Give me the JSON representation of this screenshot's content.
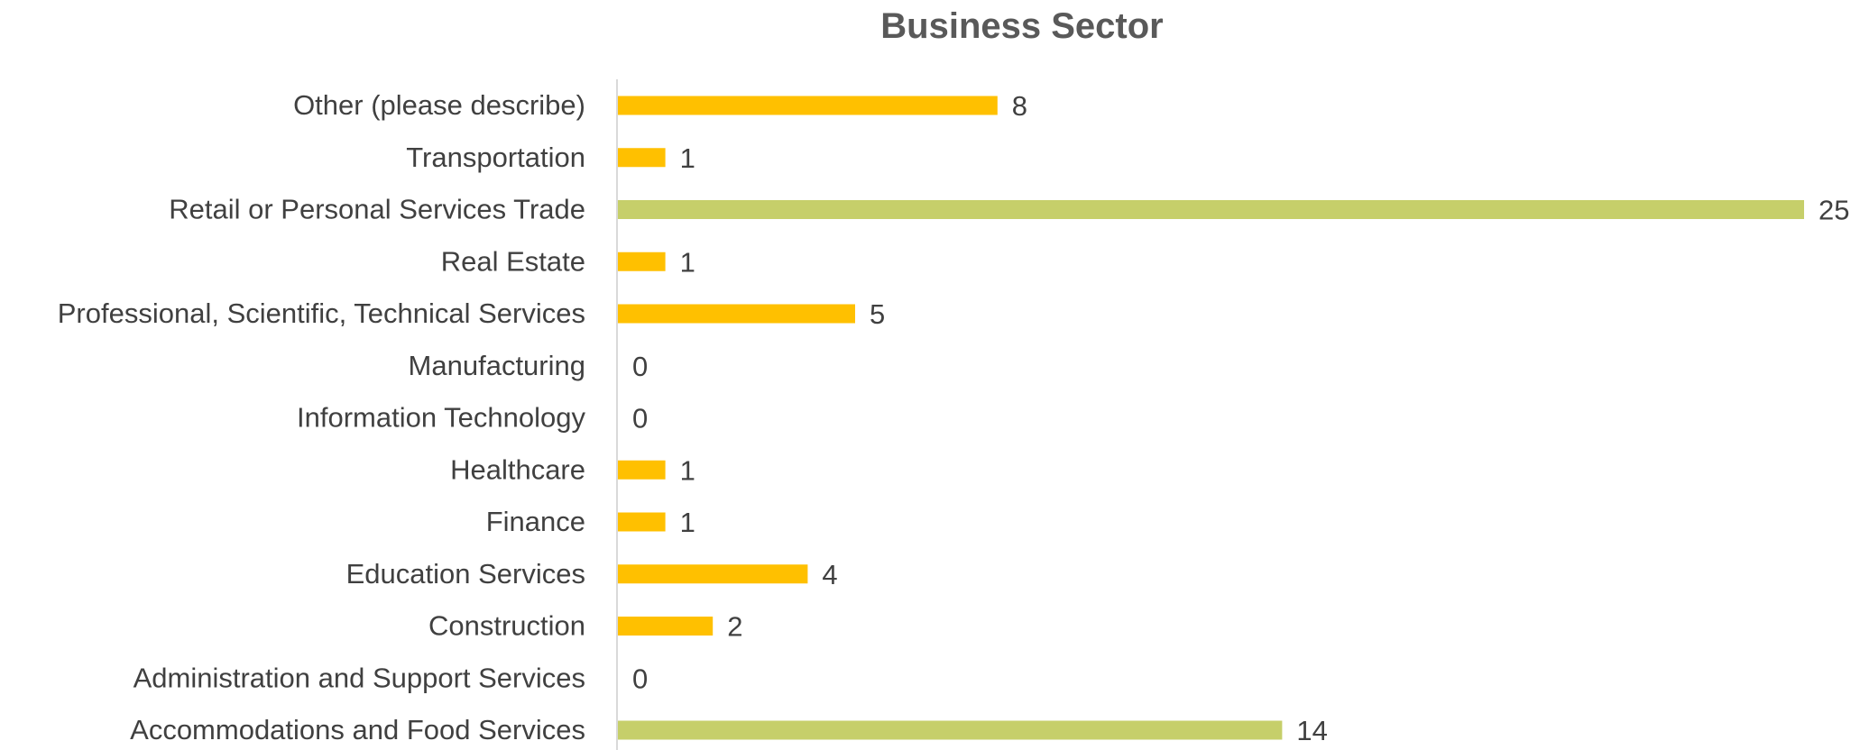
{
  "chart_data": {
    "type": "bar",
    "orientation": "horizontal",
    "title": "Business Sector",
    "xlabel": "",
    "ylabel": "",
    "categories": [
      "Accommodations and Food Services",
      "Administration and Support Services",
      "Construction",
      "Education Services",
      "Finance",
      "Healthcare",
      "Information Technology",
      "Manufacturing",
      "Professional, Scientific, Technical Services",
      "Real Estate",
      "Retail or Personal Services Trade",
      "Transportation",
      "Other (please describe)"
    ],
    "values": [
      14,
      0,
      2,
      4,
      1,
      1,
      0,
      0,
      5,
      1,
      25,
      1,
      8
    ],
    "xlim": [
      0,
      25
    ],
    "grid": false,
    "legend": "none",
    "data_labels": true,
    "colors": {
      "default": "#FFC000",
      "highlight": "#C6CF6A",
      "axis": "#D9D9D9",
      "text": "#404040",
      "title": "#595959"
    },
    "highlighted_categories": [
      "Accommodations and Food Services",
      "Retail or Personal Services Trade"
    ]
  }
}
